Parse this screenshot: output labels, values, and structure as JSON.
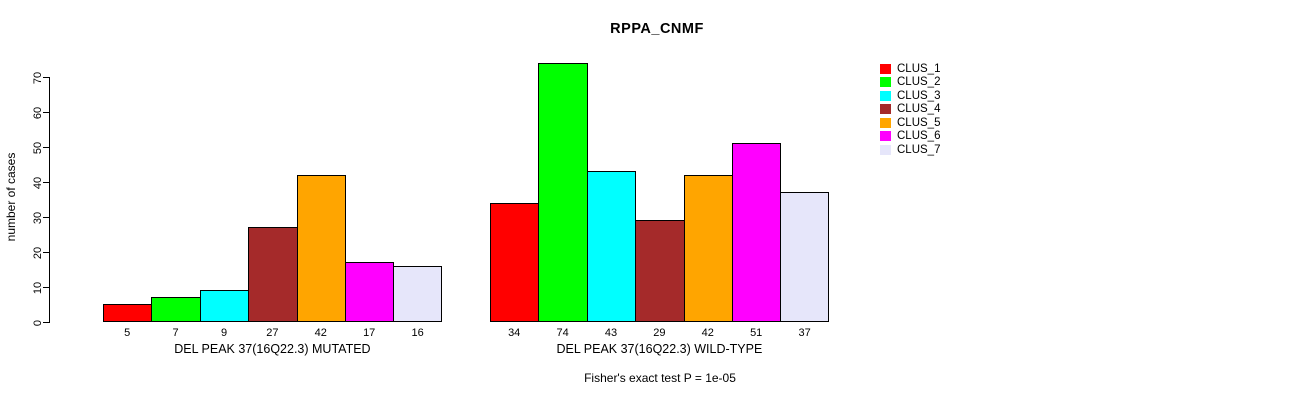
{
  "title": "RPPA_CNMF",
  "footer": "Fisher's exact test P = 1e-05",
  "y_axis": {
    "label": "number of cases",
    "ticks": [
      0,
      10,
      20,
      30,
      40,
      50,
      60,
      70
    ]
  },
  "legend": {
    "items": [
      {
        "label": "CLUS_1",
        "color": "#FF0000"
      },
      {
        "label": "CLUS_2",
        "color": "#00FF00"
      },
      {
        "label": "CLUS_3",
        "color": "#00FFFF"
      },
      {
        "label": "CLUS_4",
        "color": "#A52A2A"
      },
      {
        "label": "CLUS_5",
        "color": "#FFA500"
      },
      {
        "label": "CLUS_6",
        "color": "#FF00FF"
      },
      {
        "label": "CLUS_7",
        "color": "#E6E6FA"
      }
    ]
  },
  "chart_data": {
    "type": "bar",
    "title": "RPPA_CNMF",
    "ylabel": "number of cases",
    "ylim": [
      0,
      70
    ],
    "yticks": [
      0,
      10,
      20,
      30,
      40,
      50,
      60,
      70
    ],
    "grid": false,
    "legend_position": "right",
    "series_names": [
      "CLUS_1",
      "CLUS_2",
      "CLUS_3",
      "CLUS_4",
      "CLUS_5",
      "CLUS_6",
      "CLUS_7"
    ],
    "series_colors": [
      "#FF0000",
      "#00FF00",
      "#00FFFF",
      "#A52A2A",
      "#FFA500",
      "#FF00FF",
      "#E6E6FA"
    ],
    "groups": [
      {
        "label": "DEL PEAK 37(16Q22.3) MUTATED",
        "values": [
          5,
          7,
          9,
          27,
          42,
          17,
          16
        ]
      },
      {
        "label": "DEL PEAK 37(16Q22.3) WILD-TYPE",
        "values": [
          34,
          74,
          43,
          29,
          42,
          51,
          37
        ]
      }
    ],
    "annotation": "Fisher's exact test P = 1e-05"
  }
}
